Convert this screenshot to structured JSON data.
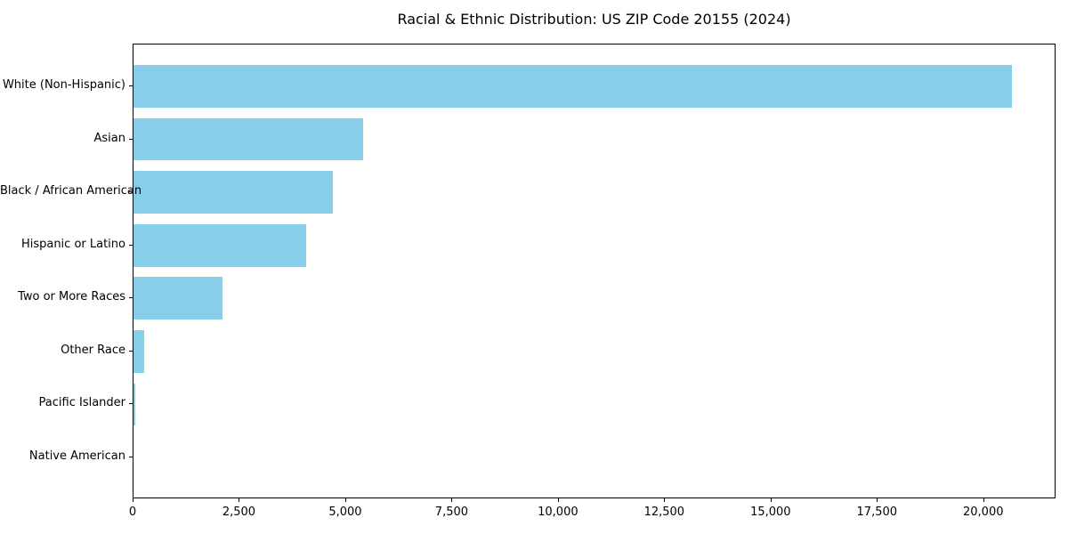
{
  "figure": {
    "background_color": "#ffffff"
  },
  "chart_data": {
    "type": "bar",
    "orientation": "horizontal",
    "title": "Racial & Ethnic Distribution: US ZIP Code 20155 (2024)",
    "categories": [
      "White (Non-Hispanic)",
      "Asian",
      "Black / African American",
      "Hispanic or Latino",
      "Two or More Races",
      "Other Race",
      "Pacific Islander",
      "Native American"
    ],
    "values": [
      20660,
      5400,
      4690,
      4070,
      2100,
      250,
      40,
      0
    ],
    "xlabel": "",
    "ylabel": "",
    "xlim": [
      0,
      21700
    ],
    "xticks": [
      0,
      2500,
      5000,
      7500,
      10000,
      12500,
      15000,
      17500,
      20000
    ],
    "xtick_labels": [
      "0",
      "2,500",
      "5,000",
      "7,500",
      "10,000",
      "12,500",
      "15,000",
      "17,500",
      "20,000"
    ],
    "bar_color": "#87CEEB",
    "text_color": "#000000",
    "spine_color": "#000000",
    "grid": false,
    "legend": null
  }
}
